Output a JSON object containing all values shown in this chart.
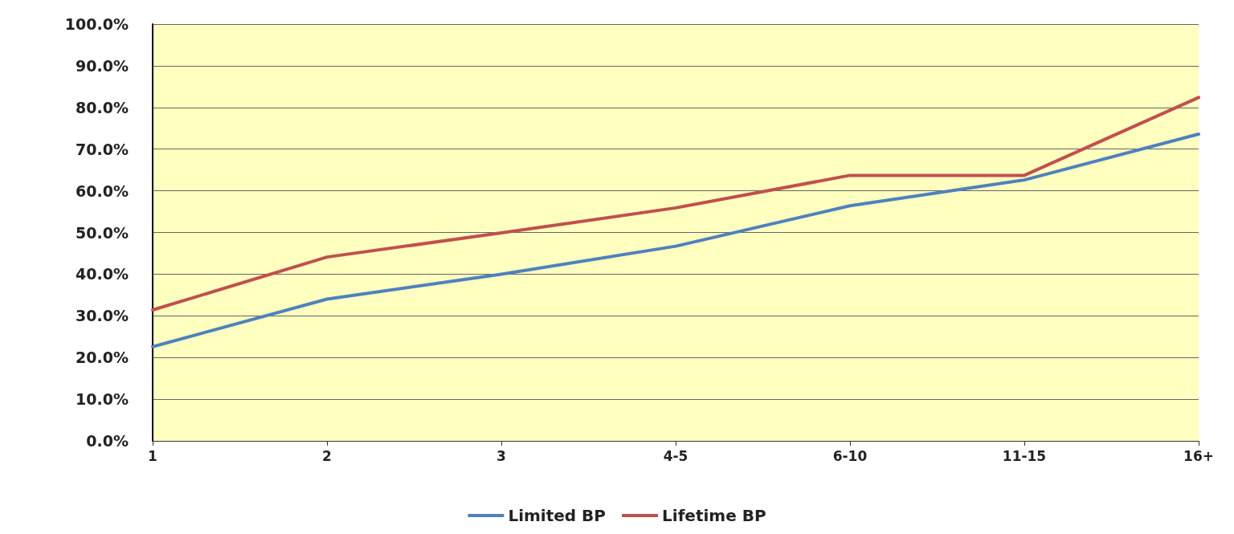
{
  "chart_data": {
    "type": "line",
    "categories": [
      "1",
      "2",
      "3",
      "4-5",
      "6-10",
      "11-15",
      "16+"
    ],
    "series": [
      {
        "name": "Limited BP",
        "color": "#4f81bd",
        "values": [
          22.6,
          34.0,
          40.0,
          46.7,
          56.4,
          62.6,
          73.6
        ]
      },
      {
        "name": "Lifetime BP",
        "color": "#c0504d",
        "values": [
          31.4,
          44.1,
          49.9,
          55.9,
          63.7,
          63.7,
          82.4
        ]
      }
    ],
    "ylim": [
      0,
      100
    ],
    "yticks": [
      {
        "value": 0,
        "label": "0.0%"
      },
      {
        "value": 10,
        "label": "10.0%"
      },
      {
        "value": 20,
        "label": "20.0%"
      },
      {
        "value": 30,
        "label": "30.0%"
      },
      {
        "value": 40,
        "label": "40.0%"
      },
      {
        "value": 50,
        "label": "50.0%"
      },
      {
        "value": 60,
        "label": "60.0%"
      },
      {
        "value": 70,
        "label": "70.0%"
      },
      {
        "value": 80,
        "label": "80.0%"
      },
      {
        "value": 90,
        "label": "90.0%"
      },
      {
        "value": 100,
        "label": "100.0%"
      }
    ],
    "grid": "y",
    "legend": "bottom",
    "marker": "none",
    "line_style": "solid"
  }
}
